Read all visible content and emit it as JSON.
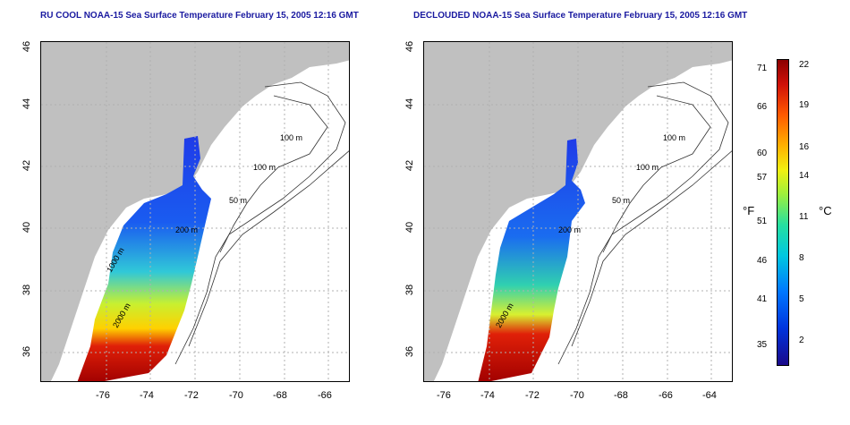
{
  "titles": {
    "left": "RU COOL NOAA-15 Sea Surface Temperature February 15, 2005 12:16 GMT",
    "right": "DECLOUDED NOAA-15 Sea Surface Temperature February 15, 2005 12:16 GMT"
  },
  "axes": {
    "x_ticks": [
      "-76",
      "-74",
      "-72",
      "-70",
      "-68",
      "-66",
      "-64"
    ],
    "y_ticks": [
      "46",
      "44",
      "42",
      "40",
      "38",
      "36"
    ]
  },
  "contours": {
    "left": [
      "100 m",
      "100 m",
      "50 m",
      "200 m",
      "2000 m",
      "1000 m"
    ],
    "right": [
      "100 m",
      "100 m",
      "50 m",
      "200 m",
      "2000 m"
    ]
  },
  "colorbar": {
    "unit_f": "°F",
    "unit_c": "°C",
    "fahrenheit_ticks": [
      "71",
      "66",
      "60",
      "57",
      "51",
      "46",
      "41",
      "35"
    ],
    "celsius_ticks": [
      "22",
      "19",
      "16",
      "14",
      "11",
      "8",
      "5",
      "2"
    ]
  },
  "colors": {
    "land": "#c0c0c0",
    "title": "#1a1aa0",
    "grid": "#b0b0b0"
  }
}
